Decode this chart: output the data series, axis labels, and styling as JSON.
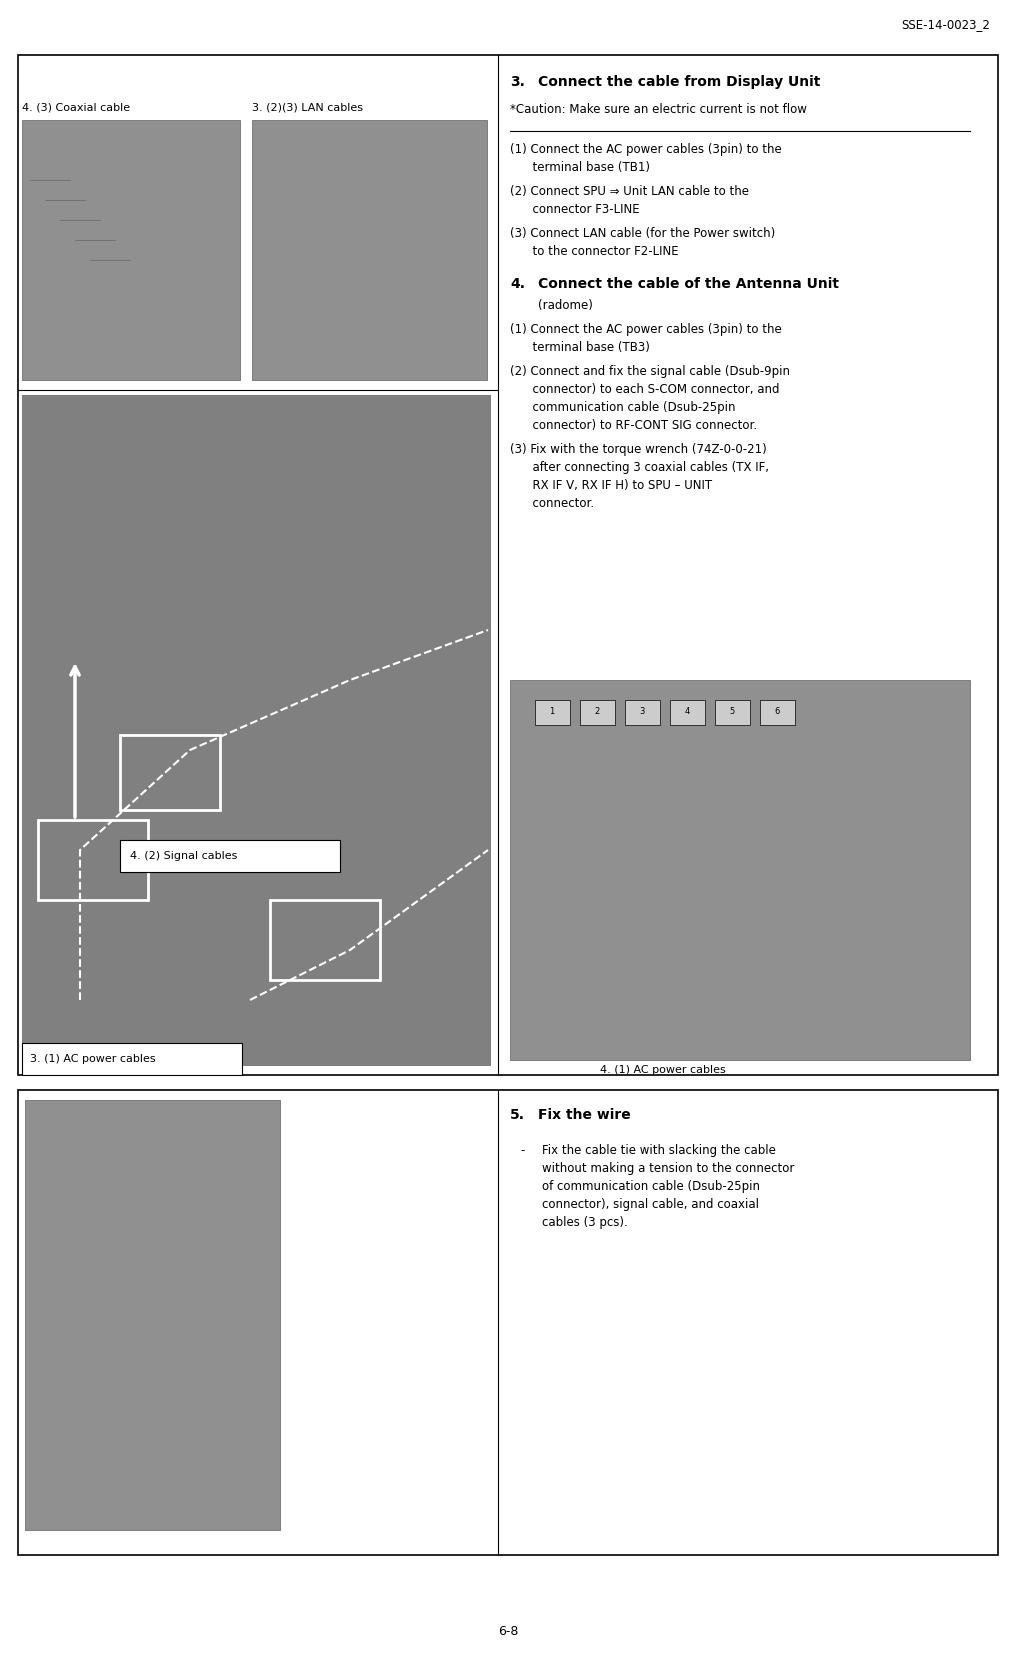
{
  "page_header": "SSE-14-0023_2",
  "page_footer": "6-8",
  "background_color": "#ffffff",
  "section3_title_num": "3.",
  "section3_title_text": "Connect the cable from Display Unit",
  "section3_caution": "*Caution: Make sure an electric current is not flow",
  "section3_items": [
    [
      "(1) Connect the AC power cables (3pin) to the",
      "      terminal base (TB1)"
    ],
    [
      "(2) Connect SPU ⇒ Unit LAN cable to the",
      "      connector F3-LINE"
    ],
    [
      "(3) Connect LAN cable (for the Power switch)",
      "      to the connector F2-LINE"
    ]
  ],
  "section4_title_num": "4.",
  "section4_title_text": "Connect the cable of the Antenna Unit",
  "section4_title_sub": "(radome)",
  "section4_items": [
    [
      "(1) Connect the AC power cables (3pin) to the",
      "      terminal base (TB3)"
    ],
    [
      "(2) Connect and fix the signal cable (Dsub-9pin",
      "      connector) to each S-COM connector, and",
      "      communication cable (Dsub-25pin",
      "      connector) to RF-CONT SIG connector."
    ],
    [
      "(3) Fix with the torque wrench (74Z-0-0-21)",
      "      after connecting 3 coaxial cables (TX IF,",
      "      RX IF V, RX IF H) to SPU – UNIT",
      "      connector."
    ]
  ],
  "section5_title_num": "5.",
  "section5_title_text": "Fix the wire",
  "section5_bullet": "Fix the cable tie with slacking the cable without making a tension to the connector of communication cable (Dsub-25pin connector), signal cable, and coaxial cables (3 pcs).",
  "label_coaxial": "4. (3) Coaxial cable",
  "label_lan": "3. (2)(3) LAN cables",
  "label_signal": "4. (2) Signal cables",
  "label_ac3": "3. (1) AC power cables",
  "label_ac4": "4. (1) AC power cables"
}
